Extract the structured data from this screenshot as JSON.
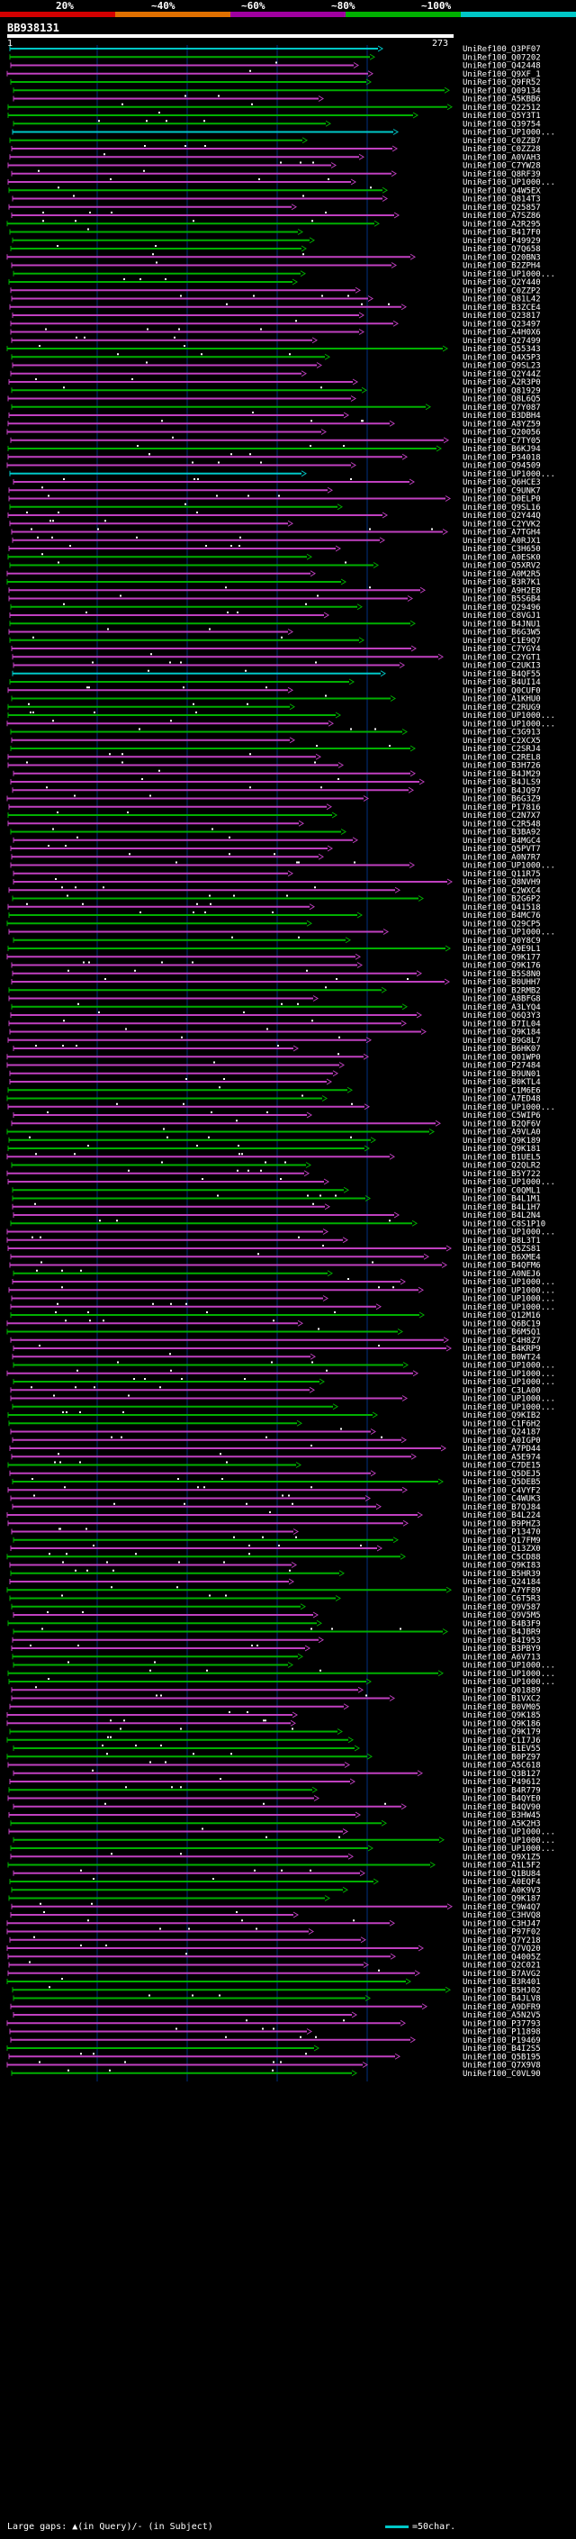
{
  "header": {
    "query_id": "BB938131",
    "range_start": "1",
    "range_end": "273",
    "scale_labels": [
      "20%",
      "~40%",
      "~60%",
      "~80%",
      "~100%"
    ],
    "scale_colors": [
      "#d40000",
      "#e07000",
      "#a000a0",
      "#00b000",
      "#00c8c8"
    ]
  },
  "legend": {
    "gaps_text": "Large gaps: ▲(in Query)/- (in Subject)",
    "scale_text": "=50char."
  },
  "colors": {
    "high": "#00c8c8",
    "mid_high": "#00b000",
    "mid": "#c040c0",
    "gridline": "#003080"
  },
  "hits": [
    "UniRef100_Q3PF07",
    "UniRef100_Q07202",
    "UniRef100_Q42448",
    "UniRef100_Q9XF_1",
    "UniRef100_Q9FR52",
    "UniRef100_Q09134",
    "UniRef100_A5KBB6",
    "UniRef100_Q22512",
    "UniRef100_Q5Y3T1",
    "UniRef100_Q39754",
    "UniRef100_UP1000...",
    "UniRef100_C0ZZB7",
    "UniRef100_C0ZZ28",
    "UniRef100_A0VAH3",
    "UniRef100_C7YW28",
    "UniRef100_Q8RF39",
    "UniRef100_UP1000...",
    "UniRef100_Q4W5EX",
    "UniRef100_Q814T3",
    "UniRef100_Q25857",
    "UniRef100_A7SZ86",
    "UniRef100_A2R295",
    "UniRef100_B417F0",
    "UniRef100_P49929",
    "UniRef100_Q7Q658",
    "UniRef100_Q20BN3",
    "UniRef100_B2ZPH4",
    "UniRef100_UP1000...",
    "UniRef100_Q2Y440",
    "UniRef100_C0ZZP2",
    "UniRef100_Q81L42",
    "UniRef100_B3ZCE4",
    "UniRef100_Q23817",
    "UniRef100_Q23497",
    "UniRef100_A4H0X6",
    "UniRef100_Q27499",
    "UniRef100_Q55343",
    "UniRef100_Q4X5P3",
    "UniRef100_Q9SL23",
    "UniRef100_Q2Y44Z",
    "UniRef100_A2R3P0",
    "UniRef100_Q81929",
    "UniRef100_Q8L6Q5",
    "UniRef100_Q7Y087",
    "UniRef100_B3DBH4",
    "UniRef100_A8YZ59",
    "UniRef100_Q20056",
    "UniRef100_C7TY05",
    "UniRef100_B6KJ94",
    "UniRef100_P34018",
    "UniRef100_Q94509",
    "UniRef100_UP1000...",
    "UniRef100_Q6HCE3",
    "UniRef100_C9UNK7",
    "UniRef100_D0ELP0",
    "UniRef100_Q9SL16",
    "UniRef100_Q2Y44Q",
    "UniRef100_C2YVK2",
    "UniRef100_A7TGH4",
    "UniRef100_A0RJX1",
    "UniRef100_C3H650",
    "UniRef100_A0ESK0",
    "UniRef100_Q5XRV2",
    "UniRef100_A0M2R5",
    "UniRef100_B3R7K1",
    "UniRef100_A9H2E8",
    "UniRef100_B5S6B4",
    "UniRef100_Q29496",
    "UniRef100_C8VGJ1",
    "UniRef100_B4JNU1",
    "UniRef100_B6G3W5",
    "UniRef100_C1E9Q7",
    "UniRef100_C7YGY4",
    "UniRef100_C2YGT1",
    "UniRef100_C2UKI3",
    "UniRef100_B4QF55",
    "UniRef100_B4UI14",
    "UniRef100_Q0CUF0",
    "UniRef100_A1KHU0",
    "UniRef100_C2RUG9",
    "UniRef100_UP1000...",
    "UniRef100_UP1000...",
    "UniRef100_C3G913",
    "UniRef100_C2XCX5",
    "UniRef100_C2SRJ4",
    "UniRef100_C2REL8",
    "UniRef100_B3H726",
    "UniRef100_B4JM29",
    "UniRef100_B4JLS9",
    "UniRef100_B4JQ97",
    "UniRef100_B6G3Z9",
    "UniRef100_P17816",
    "UniRef100_C2N7X7",
    "UniRef100_C2R548",
    "UniRef100_B3BA92",
    "UniRef100_B4MGC4",
    "UniRef100_Q5PVT7",
    "UniRef100_A0N7R7",
    "UniRef100_UP1000...",
    "UniRef100_Q11R75",
    "UniRef100_Q8NVH9",
    "UniRef100_C2WXC4",
    "UniRef100_B2G6P2",
    "UniRef100_Q41518",
    "UniRef100_B4MC76",
    "UniRef100_Q29CP5",
    "UniRef100_UP1000...",
    "UniRef100_Q0Y8C9",
    "UniRef100_A9E9L1",
    "UniRef100_Q9K177",
    "UniRef100_Q9K176",
    "UniRef100_B5S8N0",
    "UniRef100_B0UHH7",
    "UniRef100_B2RMB2",
    "UniRef100_A8BFG8",
    "UniRef100_A3LYQ4",
    "UniRef100_Q6Q3Y3",
    "UniRef100_B7IL04",
    "UniRef100_Q9K184",
    "UniRef100_B9G8L7",
    "UniRef100_B6HK07",
    "UniRef100_Q01WP0",
    "UniRef100_P27484",
    "UniRef100_B9UN01",
    "UniRef100_B0KTL4",
    "UniRef100_C1M6E6",
    "UniRef100_A7ED48",
    "UniRef100_UP1000...",
    "UniRef100_C5WIP6",
    "UniRef100_B2QF6V",
    "UniRef100_A9VLA0",
    "UniRef100_Q9K189",
    "UniRef100_Q9K181",
    "UniRef100_B1UEL5",
    "UniRef100_Q2QLR2",
    "UniRef100_B5Y722",
    "UniRef100_UP1000...",
    "UniRef100_C0QML1",
    "UniRef100_B4L1M1",
    "UniRef100_B4L1H7",
    "UniRef100_B4L2N4",
    "UniRef100_C8S1P10",
    "UniRef100_UP1000...",
    "UniRef100_B8L3T1",
    "UniRef100_Q5ZS81",
    "UniRef100_B6XME4",
    "UniRef100_B4QFM6",
    "UniRef100_A0NEJ6",
    "UniRef100_UP1000...",
    "UniRef100_UP1000...",
    "UniRef100_UP1000...",
    "UniRef100_UP1000...",
    "UniRef100_Q12M16",
    "UniRef100_Q6BC19",
    "UniRef100_B6M5Q1",
    "UniRef100_C4H8Z7",
    "UniRef100_B4KRP9",
    "UniRef100_B0WT24",
    "UniRef100_UP1000...",
    "UniRef100_UP1000...",
    "UniRef100_UP1000...",
    "UniRef100_C3LA00",
    "UniRef100_UP1000...",
    "UniRef100_UP1000...",
    "UniRef100_Q9KIB2",
    "UniRef100_C1F6H2",
    "UniRef100_Q24187",
    "UniRef100_A0IGP0",
    "UniRef100_A7PD44",
    "UniRef100_A5E974",
    "UniRef100_C7DE15",
    "UniRef100_Q5DEJ5",
    "UniRef100_Q5DEB5",
    "UniRef100_C4VYF2",
    "UniRef100_C4WUK3",
    "UniRef100_B7QJ84",
    "UniRef100_B4L224",
    "UniRef100_B9PHZ3",
    "UniRef100_P13470",
    "UniRef100_Q17FM9",
    "UniRef100_Q13ZX0",
    "UniRef100_C5CD88",
    "UniRef100_Q9KI83",
    "UniRef100_B5HR39",
    "UniRef100_Q24184",
    "UniRef100_A7YF89",
    "UniRef100_C6T5R3",
    "UniRef100_Q9V587",
    "UniRef100_Q9V5M5",
    "UniRef100_B4B3F9",
    "UniRef100_B4JBR9",
    "UniRef100_B4I953",
    "UniRef100_B3PBY9",
    "UniRef100_A6V713",
    "UniRef100_UP1000...",
    "UniRef100_UP1000...",
    "UniRef100_UP1000...",
    "UniRef100_Q01889",
    "UniRef100_B1VXC2",
    "UniRef100_B0VM05",
    "UniRef100_Q9K185",
    "UniRef100_Q9K186",
    "UniRef100_Q9K179",
    "UniRef100_C1I7J6",
    "UniRef100_B1EV55",
    "UniRef100_B0PZ97",
    "UniRef100_A5C618",
    "UniRef100_Q3B127",
    "UniRef100_P49612",
    "UniRef100_B4R779",
    "UniRef100_B4QYE0",
    "UniRef100_B4QV90",
    "UniRef100_B3HW45",
    "UniRef100_A5K2H3",
    "UniRef100_UP1000...",
    "UniRef100_UP1000...",
    "UniRef100_UP1000...",
    "UniRef100_Q9X1Z5",
    "UniRef100_A1L5F2",
    "UniRef100_Q1BU84",
    "UniRef100_A0EQF4",
    "UniRef100_A0K9V3",
    "UniRef100_Q9K187",
    "UniRef100_C9W4Q7",
    "UniRef100_C3HVQ8",
    "UniRef100_C3HJ47",
    "UniRef100_P97F02",
    "UniRef100_Q7Y218",
    "UniRef100_Q7VQ20",
    "UniRef100_Q4005Z",
    "UniRef100_Q2C021",
    "UniRef100_B7AVG2",
    "UniRef100_B3R401",
    "UniRef100_B5HJ02",
    "UniRef100_B4JLV8",
    "UniRef100_A9DFR9",
    "UniRef100_A5N2V5",
    "UniRef100_P37793",
    "UniRef100_P11898",
    "UniRef100_P19469",
    "UniRef100_B4I2S5",
    "UniRef100_Q5B195",
    "UniRef100_Q7X9V8",
    "UniRef100_C0VL90"
  ]
}
